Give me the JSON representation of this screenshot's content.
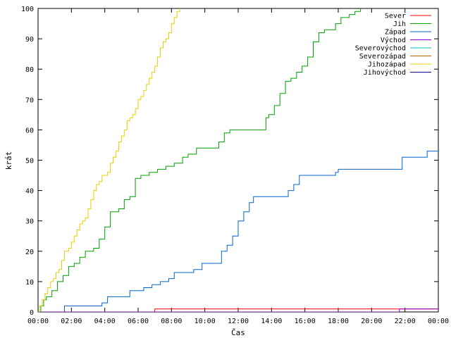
{
  "chart_data": {
    "type": "line",
    "xlabel": "Čas",
    "ylabel": "krát",
    "xlim": [
      "00:00",
      "24:00"
    ],
    "ylim": [
      0,
      100
    ],
    "x_ticks": [
      "00:00",
      "02:00",
      "04:00",
      "06:00",
      "08:00",
      "10:00",
      "12:00",
      "14:00",
      "16:00",
      "18:00",
      "20:00",
      "22:00",
      "00:00"
    ],
    "y_ticks": [
      0,
      10,
      20,
      30,
      40,
      50,
      60,
      70,
      80,
      90,
      100
    ],
    "grid": false,
    "legend_position": "top-right",
    "series": [
      {
        "name": "Sever",
        "color": "#ff0000",
        "points": [
          [
            "00:00",
            0
          ],
          [
            "07:00",
            0
          ],
          [
            "07:00",
            1
          ],
          [
            "24:00",
            1
          ]
        ]
      },
      {
        "name": "Jih",
        "color": "#00a000",
        "points": [
          [
            "00:00",
            0
          ],
          [
            "00:10",
            2
          ],
          [
            "00:20",
            4
          ],
          [
            "00:30",
            5
          ],
          [
            "00:50",
            7
          ],
          [
            "01:10",
            10
          ],
          [
            "01:30",
            12
          ],
          [
            "01:50",
            15
          ],
          [
            "02:10",
            16
          ],
          [
            "02:30",
            18
          ],
          [
            "02:50",
            20
          ],
          [
            "03:20",
            21
          ],
          [
            "03:40",
            24
          ],
          [
            "04:00",
            28
          ],
          [
            "04:20",
            33
          ],
          [
            "04:50",
            34
          ],
          [
            "05:10",
            37
          ],
          [
            "05:30",
            38
          ],
          [
            "05:50",
            44
          ],
          [
            "06:10",
            45
          ],
          [
            "06:40",
            46
          ],
          [
            "07:10",
            47
          ],
          [
            "07:40",
            48
          ],
          [
            "08:10",
            49
          ],
          [
            "08:40",
            51
          ],
          [
            "09:00",
            52
          ],
          [
            "09:30",
            54
          ],
          [
            "10:30",
            54
          ],
          [
            "10:50",
            56
          ],
          [
            "11:10",
            59
          ],
          [
            "11:30",
            60
          ],
          [
            "13:20",
            60
          ],
          [
            "13:40",
            64
          ],
          [
            "13:50",
            65
          ],
          [
            "14:10",
            68
          ],
          [
            "14:30",
            72
          ],
          [
            "14:50",
            76
          ],
          [
            "15:10",
            77
          ],
          [
            "15:30",
            79
          ],
          [
            "15:50",
            81
          ],
          [
            "16:10",
            84
          ],
          [
            "16:30",
            89
          ],
          [
            "16:50",
            92
          ],
          [
            "17:10",
            93
          ],
          [
            "17:50",
            95
          ],
          [
            "18:10",
            97
          ],
          [
            "18:40",
            98
          ],
          [
            "19:00",
            99
          ],
          [
            "19:20",
            100
          ]
        ]
      },
      {
        "name": "Západ",
        "color": "#0066cc",
        "points": [
          [
            "00:00",
            0
          ],
          [
            "01:35",
            0
          ],
          [
            "01:35",
            2
          ],
          [
            "03:40",
            2
          ],
          [
            "03:50",
            3
          ],
          [
            "04:10",
            5
          ],
          [
            "05:20",
            5
          ],
          [
            "05:30",
            7
          ],
          [
            "06:20",
            8
          ],
          [
            "06:50",
            9
          ],
          [
            "07:20",
            10
          ],
          [
            "07:50",
            11
          ],
          [
            "08:10",
            13
          ],
          [
            "09:20",
            14
          ],
          [
            "09:50",
            16
          ],
          [
            "10:50",
            16
          ],
          [
            "11:00",
            20
          ],
          [
            "11:20",
            22
          ],
          [
            "11:40",
            25
          ],
          [
            "12:00",
            30
          ],
          [
            "12:20",
            33
          ],
          [
            "12:40",
            36
          ],
          [
            "12:55",
            38
          ],
          [
            "14:50",
            38
          ],
          [
            "15:00",
            40
          ],
          [
            "15:20",
            42
          ],
          [
            "15:40",
            45
          ],
          [
            "17:50",
            46
          ],
          [
            "18:00",
            47
          ],
          [
            "21:40",
            47
          ],
          [
            "21:50",
            51
          ],
          [
            "23:10",
            51
          ],
          [
            "23:20",
            53
          ],
          [
            "24:00",
            53
          ]
        ]
      },
      {
        "name": "Východ",
        "color": "#9400d3",
        "points": [
          [
            "00:00",
            0
          ],
          [
            "21:30",
            0
          ],
          [
            "21:40",
            1
          ],
          [
            "24:00",
            1
          ]
        ]
      },
      {
        "name": "Severovýchod",
        "color": "#00c0c0",
        "points": []
      },
      {
        "name": "Severozápad",
        "color": "#c06000",
        "points": []
      },
      {
        "name": "Jihozápad",
        "color": "#e8d000",
        "points": [
          [
            "00:00",
            0
          ],
          [
            "00:05",
            2
          ],
          [
            "00:15",
            4
          ],
          [
            "00:25",
            6
          ],
          [
            "00:35",
            8
          ],
          [
            "00:45",
            10
          ],
          [
            "00:55",
            11
          ],
          [
            "01:05",
            13
          ],
          [
            "01:15",
            14
          ],
          [
            "01:25",
            17
          ],
          [
            "01:35",
            20
          ],
          [
            "01:50",
            21
          ],
          [
            "02:00",
            23
          ],
          [
            "02:10",
            25
          ],
          [
            "02:20",
            27
          ],
          [
            "02:30",
            29
          ],
          [
            "02:40",
            30
          ],
          [
            "02:50",
            31
          ],
          [
            "03:00",
            34
          ],
          [
            "03:10",
            37
          ],
          [
            "03:20",
            40
          ],
          [
            "03:30",
            42
          ],
          [
            "03:40",
            43
          ],
          [
            "03:50",
            45
          ],
          [
            "04:10",
            46
          ],
          [
            "04:20",
            49
          ],
          [
            "04:30",
            51
          ],
          [
            "04:40",
            53
          ],
          [
            "04:50",
            56
          ],
          [
            "05:00",
            58
          ],
          [
            "05:10",
            60
          ],
          [
            "05:20",
            63
          ],
          [
            "05:30",
            64
          ],
          [
            "05:40",
            65
          ],
          [
            "05:50",
            67
          ],
          [
            "06:00",
            70
          ],
          [
            "06:10",
            71
          ],
          [
            "06:20",
            73
          ],
          [
            "06:30",
            75
          ],
          [
            "06:40",
            77
          ],
          [
            "06:50",
            79
          ],
          [
            "07:00",
            81
          ],
          [
            "07:10",
            84
          ],
          [
            "07:20",
            87
          ],
          [
            "07:30",
            89
          ],
          [
            "07:40",
            90
          ],
          [
            "07:50",
            92
          ],
          [
            "08:00",
            95
          ],
          [
            "08:10",
            97
          ],
          [
            "08:20",
            99
          ],
          [
            "08:30",
            100
          ]
        ]
      },
      {
        "name": "Jihovýchod",
        "color": "#000099",
        "points": []
      }
    ]
  }
}
